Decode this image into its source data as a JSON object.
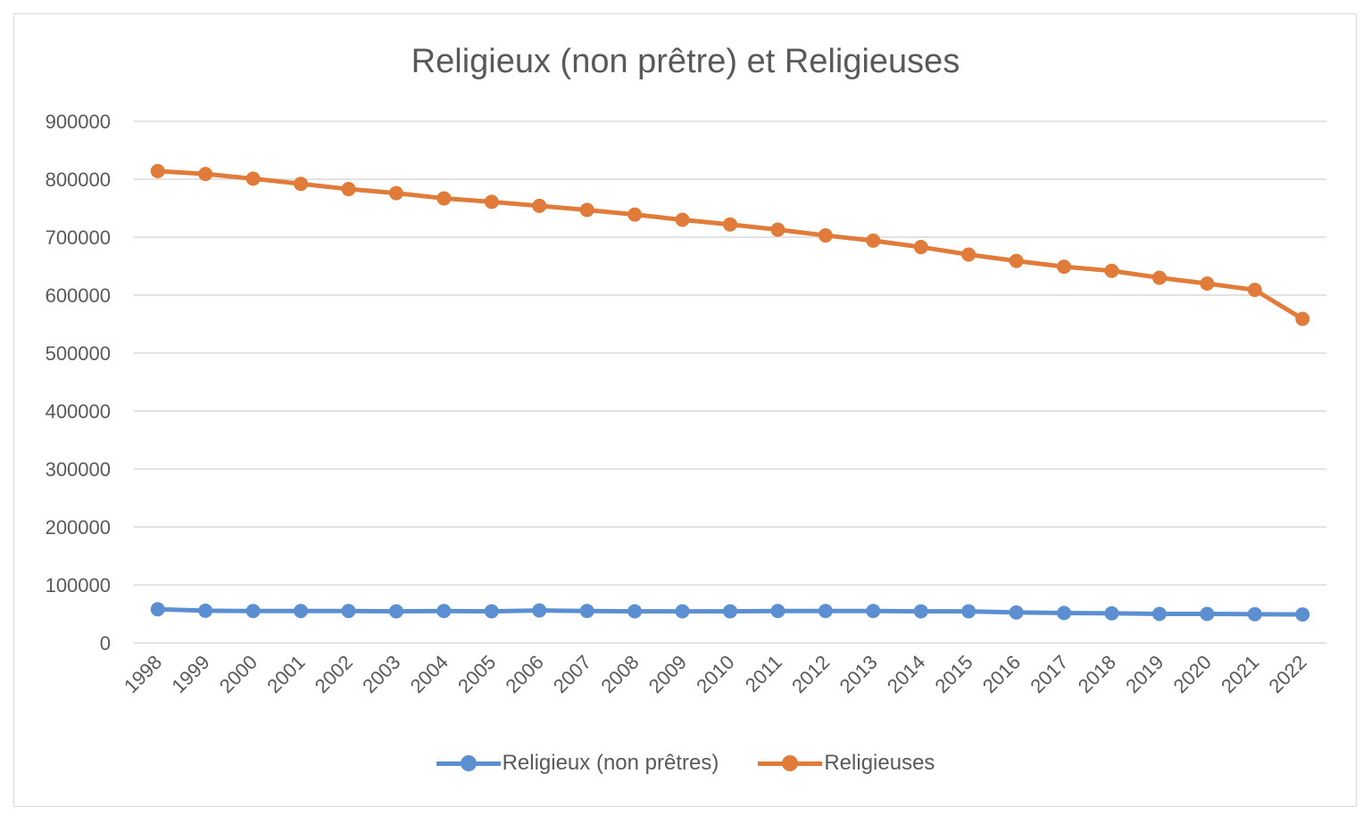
{
  "chart_data": {
    "type": "line",
    "title": "Religieux (non prêtre) et Religieuses",
    "xlabel": "",
    "ylabel": "",
    "ylim": [
      0,
      900000
    ],
    "yticks": [
      0,
      100000,
      200000,
      300000,
      400000,
      500000,
      600000,
      700000,
      800000,
      900000
    ],
    "grid": true,
    "legend_position": "bottom",
    "x": [
      "1998",
      "1999",
      "2000",
      "2001",
      "2002",
      "2003",
      "2004",
      "2005",
      "2006",
      "2007",
      "2008",
      "2009",
      "2010",
      "2011",
      "2012",
      "2013",
      "2014",
      "2015",
      "2016",
      "2017",
      "2018",
      "2019",
      "2020",
      "2021",
      "2022"
    ],
    "series": [
      {
        "name": "Religieux (non prêtres)",
        "color": "#5b8fd1",
        "values": [
          58000,
          55500,
          55000,
          55000,
          55000,
          54500,
          55000,
          54500,
          56000,
          55000,
          54500,
          54500,
          54500,
          55000,
          55000,
          55000,
          54500,
          54500,
          52500,
          51500,
          51000,
          50000,
          50000,
          49500,
          49000
        ]
      },
      {
        "name": "Religieuses",
        "color": "#e07b39",
        "values": [
          814000,
          809000,
          801000,
          792000,
          783000,
          776000,
          767000,
          761000,
          754000,
          747000,
          739000,
          730000,
          722000,
          713000,
          703000,
          694000,
          683000,
          670000,
          659000,
          649000,
          642000,
          630000,
          620000,
          609000,
          559000
        ]
      }
    ]
  }
}
